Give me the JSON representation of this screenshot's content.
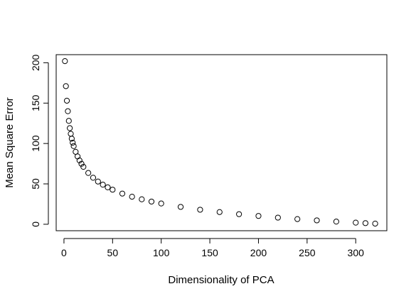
{
  "chart_data": {
    "type": "scatter",
    "title": "",
    "xlabel": "Dimensionality of PCA",
    "ylabel": "Mean Square Error",
    "xlim": [
      -8,
      332
    ],
    "ylim": [
      -8,
      210
    ],
    "x_ticks": [
      0,
      50,
      100,
      150,
      200,
      250,
      300
    ],
    "y_ticks": [
      0,
      50,
      100,
      150,
      200
    ],
    "grid": false,
    "legend": "none",
    "marker": "open-circle",
    "point_color": "#000000",
    "x": [
      1,
      2,
      3,
      4,
      5,
      6,
      7,
      8,
      9,
      10,
      12,
      14,
      16,
      18,
      20,
      25,
      30,
      35,
      40,
      45,
      50,
      60,
      70,
      80,
      90,
      100,
      120,
      140,
      160,
      180,
      200,
      220,
      240,
      260,
      280,
      300,
      310,
      320
    ],
    "y": [
      202,
      171,
      153,
      140,
      128,
      119,
      112,
      106,
      101,
      96.8,
      89.7,
      84.0,
      79.0,
      74.9,
      71.1,
      63.5,
      57.6,
      52.9,
      49.0,
      45.7,
      42.8,
      38.0,
      34.1,
      30.9,
      28.1,
      25.7,
      21.5,
      18.0,
      15.1,
      12.5,
      10.3,
      8.2,
      6.4,
      4.8,
      3.3,
      2.0,
      1.4,
      0.8
    ]
  }
}
